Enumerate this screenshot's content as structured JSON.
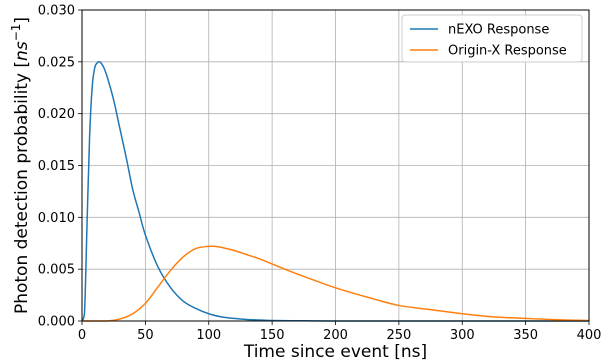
{
  "chart_data": {
    "type": "line",
    "title": "",
    "xlabel": "Time since event [ns]",
    "ylabel_prefix": "Photon detection probability [",
    "ylabel_unit": "ns",
    "ylabel_exp": "−1",
    "ylabel_suffix": "]",
    "xlim": [
      0,
      400
    ],
    "ylim": [
      0,
      0.03
    ],
    "x_ticks": [
      "0",
      "50",
      "100",
      "150",
      "200",
      "250",
      "300",
      "350",
      "400"
    ],
    "y_ticks": [
      "0.000",
      "0.005",
      "0.010",
      "0.015",
      "0.020",
      "0.025",
      "0.030"
    ],
    "grid": true,
    "legend_position": "top-right",
    "series": [
      {
        "name": "nEXO Response",
        "color": "#1f77b4",
        "x": [
          0,
          2,
          4,
          6,
          8,
          10,
          12,
          14,
          17,
          20,
          25,
          30,
          35,
          40,
          45,
          50,
          60,
          70,
          80,
          90,
          100,
          110,
          120,
          130,
          140,
          150,
          175,
          200,
          250,
          300,
          400
        ],
        "y": [
          0.0,
          0.0008,
          0.0095,
          0.0178,
          0.0225,
          0.0244,
          0.0249,
          0.025,
          0.0245,
          0.0235,
          0.0213,
          0.0185,
          0.0157,
          0.0127,
          0.0105,
          0.0083,
          0.0052,
          0.0032,
          0.0019,
          0.0012,
          0.0007,
          0.0004,
          0.00025,
          0.00015,
          0.0001,
          5e-05,
          2e-05,
          0.0,
          0.0,
          0.0,
          0.0
        ]
      },
      {
        "name": "Origin-X Response",
        "color": "#ff7f0e",
        "x": [
          0,
          20,
          30,
          40,
          50,
          60,
          70,
          80,
          90,
          100,
          105,
          110,
          120,
          130,
          140,
          150,
          160,
          175,
          200,
          225,
          250,
          275,
          300,
          325,
          350,
          375,
          400
        ],
        "y": [
          0.0,
          0.0,
          0.0002,
          0.0007,
          0.0017,
          0.0033,
          0.0049,
          0.0062,
          0.007,
          0.0072,
          0.0072,
          0.0071,
          0.0068,
          0.0064,
          0.006,
          0.0055,
          0.005,
          0.0043,
          0.0032,
          0.0023,
          0.0015,
          0.0011,
          0.0007,
          0.0004,
          0.00025,
          0.00012,
          5e-05
        ]
      }
    ]
  }
}
